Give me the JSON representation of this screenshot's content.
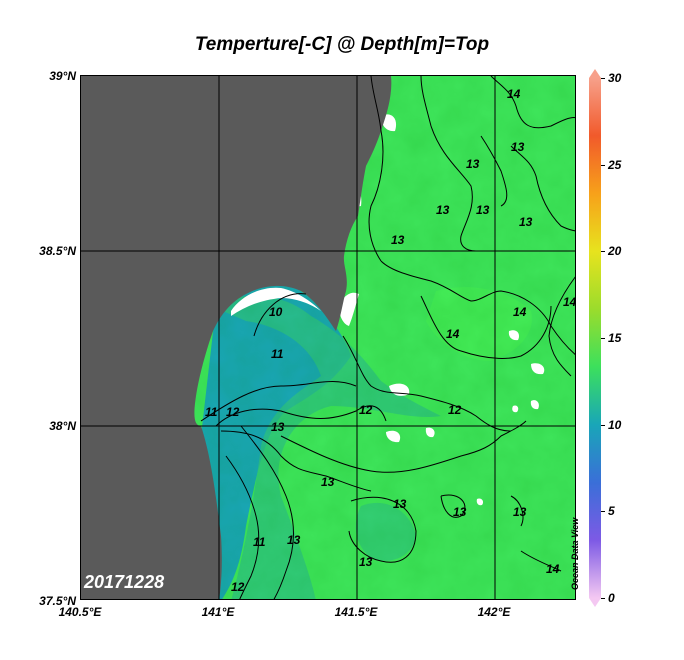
{
  "title": "Temperture[-C] @ Depth[m]=Top",
  "date_label": "20171228",
  "watermark": "Ocean Data View",
  "axes": {
    "y_ticks": [
      "39°N",
      "38.5°N",
      "38°N",
      "37.5°N"
    ],
    "x_ticks": [
      "140.5°E",
      "141°E",
      "141.5°E",
      "142°E"
    ],
    "lon_range": [
      140.5,
      142.3
    ],
    "lat_range": [
      37.5,
      39.0
    ]
  },
  "colorbar": {
    "ticks": [
      "30",
      "25",
      "20",
      "15",
      "10",
      "5",
      "0"
    ],
    "range": [
      0,
      30
    ],
    "colors": [
      "#f7a08a",
      "#f15a2b",
      "#f7a11a",
      "#e7e31e",
      "#9bdc2c",
      "#3ce05c",
      "#19a6b8",
      "#3a6fd8",
      "#7d5ae5",
      "#f4c8f2"
    ]
  },
  "colors": {
    "land": "#5a5a5a",
    "sea_warm": "#3fe65c",
    "sea_mid": "#34cf74",
    "sea_cool": "#1aa6b6",
    "missing": "#ffffff"
  },
  "contour_labels": [
    "14",
    "13",
    "13",
    "13",
    "13",
    "13",
    "13",
    "14",
    "14",
    "14",
    "12",
    "10",
    "11",
    "11",
    "12",
    "12",
    "13",
    "13",
    "13",
    "13",
    "13",
    "11",
    "13",
    "12",
    "14",
    "13"
  ]
}
